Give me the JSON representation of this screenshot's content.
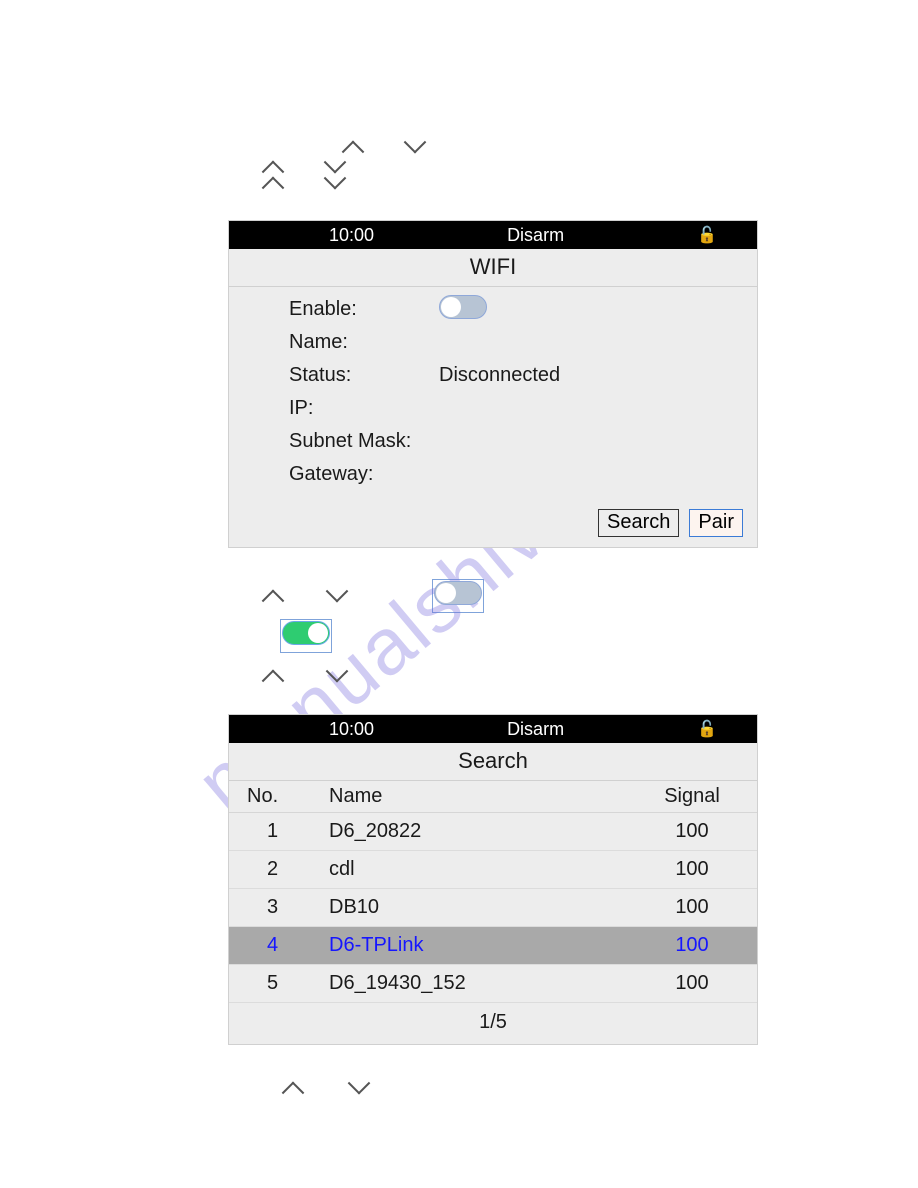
{
  "colors": {
    "panel_bg": "#ededed",
    "panel_border": "#d0d0d0",
    "row_border": "#dcdcdc",
    "header_bg": "#000000",
    "header_fg": "#ffffff",
    "selected_row_bg": "#a9a9a9",
    "selected_row_fg": "#1616ff",
    "toggle_off_bg": "#b7c4d4",
    "toggle_on_bg": "#2ecc71",
    "toggle_border": "#8fa8d9",
    "button_border": "#333333",
    "pair_button_border": "#3b7bd6"
  },
  "wifi_panel": {
    "header": {
      "time": "10:00",
      "mode": "Disarm",
      "lock_icon": "unlock"
    },
    "title": "WIFI",
    "fields": {
      "enable_label": "Enable:",
      "enable_on": false,
      "name_label": "Name:",
      "name_value": "",
      "status_label": "Status:",
      "status_value": "Disconnected",
      "ip_label": "IP:",
      "ip_value": "",
      "subnet_label": "Subnet Mask:",
      "subnet_value": "",
      "gateway_label": "Gateway:",
      "gateway_value": ""
    },
    "buttons": {
      "search": "Search",
      "pair": "Pair"
    }
  },
  "mid_toggles": {
    "toggle1_on": false,
    "toggle2_on": true
  },
  "search_panel": {
    "header": {
      "time": "10:00",
      "mode": "Disarm",
      "lock_icon": "unlock"
    },
    "title": "Search",
    "columns": {
      "no": "No.",
      "name": "Name",
      "signal": "Signal"
    },
    "rows": [
      {
        "no": "1",
        "name": "D6_20822",
        "signal": "100",
        "selected": false
      },
      {
        "no": "2",
        "name": "cdl",
        "signal": "100",
        "selected": false
      },
      {
        "no": "3",
        "name": "DB10",
        "signal": "100",
        "selected": false
      },
      {
        "no": "4",
        "name": "D6-TPLink",
        "signal": "100",
        "selected": true
      },
      {
        "no": "5",
        "name": "D6_19430_152",
        "signal": "100",
        "selected": false
      }
    ],
    "pager": "1/5"
  },
  "watermark": "manualshive.com"
}
